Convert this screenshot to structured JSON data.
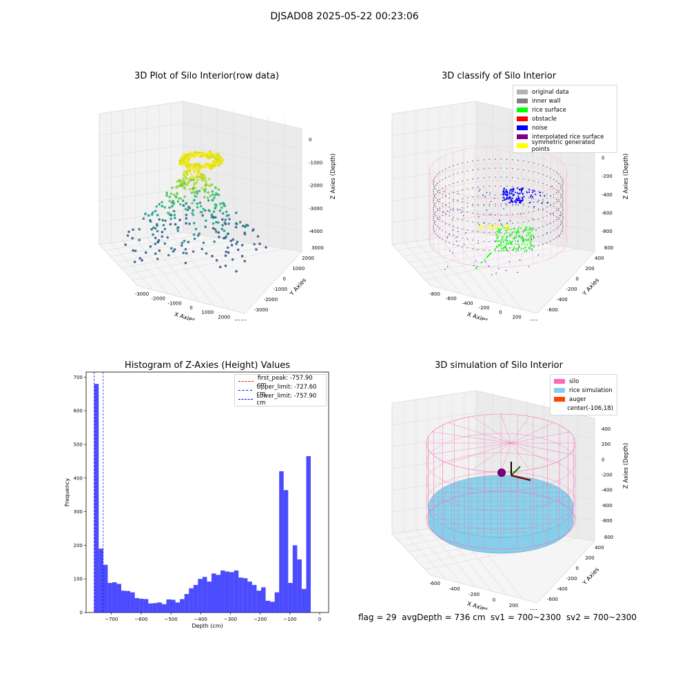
{
  "suptitle": "DJSAD08 2025-05-22 00:23:06",
  "status_text": "flag = 29  avgDepth = 736 cm  sv1 = 700~2300  sv2 = 700~2300",
  "chart_data": [
    {
      "type": "scatter",
      "title": "3D Plot of Silo Interior(row data)",
      "xlabel": "X Axies",
      "ylabel": "Y Axies",
      "zlabel": "Z Axies (Depth)",
      "xticks": [
        "-3000",
        "-2000",
        "-1000",
        "0",
        "1000",
        "2000",
        "3000"
      ],
      "yticks": [
        "-3000",
        "-2000",
        "-1000",
        "0",
        "1000",
        "2000",
        "3000"
      ],
      "zticks": [
        "0",
        "-1000",
        "-2000",
        "-3000",
        "-4000"
      ],
      "xlim": [
        -3500,
        3500
      ],
      "ylim": [
        -3500,
        3500
      ],
      "zlim": [
        -4500,
        0
      ],
      "colormap": "viridis"
    },
    {
      "type": "scatter",
      "title": "3D classify of Silo Interior",
      "xlabel": "X Axies",
      "ylabel": "Y Axies",
      "zlabel": "Z Axies (Depth)",
      "xticks": [
        "-800",
        "-600",
        "-400",
        "-200",
        "0",
        "200",
        "400"
      ],
      "yticks": [
        "-600",
        "-400",
        "-200",
        "0",
        "200",
        "400",
        "600"
      ],
      "zticks": [
        "200",
        "0",
        "-200",
        "-400",
        "-600",
        "-800"
      ],
      "legend": [
        {
          "label": "original data",
          "color": "#b3b3b3"
        },
        {
          "label": "inner wall",
          "color": "#808080"
        },
        {
          "label": "rice surface",
          "color": "#00ff00"
        },
        {
          "label": "obstacle",
          "color": "#ff0000"
        },
        {
          "label": "noise",
          "color": "#0000ff"
        },
        {
          "label": "interpolated rice surface",
          "color": "#800080"
        },
        {
          "label": "symmetric generated points",
          "color": "#ffff00"
        }
      ],
      "legend_position": "upper right"
    },
    {
      "type": "bar",
      "title": "Histogram of Z-Axies (Height) Values",
      "xlabel": "Depth (cm)",
      "ylabel": "Frequency",
      "xlim": [
        -785,
        30
      ],
      "ylim": [
        0,
        715
      ],
      "xticks": [
        -700,
        -600,
        -500,
        -400,
        -300,
        -200,
        -100,
        0
      ],
      "yticks": [
        0,
        100,
        200,
        300,
        400,
        500,
        600,
        700
      ],
      "bin_start": -757.9,
      "bin_width": 15.16,
      "values": [
        680,
        190,
        142,
        88,
        90,
        85,
        65,
        64,
        60,
        43,
        41,
        40,
        27,
        28,
        30,
        25,
        39,
        38,
        30,
        40,
        55,
        72,
        82,
        100,
        106,
        92,
        116,
        112,
        125,
        122,
        120,
        125,
        104,
        102,
        92,
        82,
        65,
        75,
        35,
        32,
        60,
        420,
        364,
        88,
        200,
        158,
        70,
        465
      ],
      "bar_color": "#0000ff",
      "bar_alpha": 0.7,
      "vlines": [
        {
          "label": "first_peak: -757.90 cm",
          "x": -757.9,
          "color": "#ff0000"
        },
        {
          "label": "Upper_limit: -727.60 cm",
          "x": -727.6,
          "color": "#0000ff"
        },
        {
          "label": "Lower_limit: -757.90 cm",
          "x": -757.9,
          "color": "#0000ff"
        }
      ],
      "legend_position": "upper right"
    },
    {
      "type": "scatter",
      "title": "3D simulation of Silo Interior",
      "xlabel": "X Axies",
      "ylabel": "Y Axies",
      "zlabel": "Z Axies (Depth)",
      "xticks": [
        "-600",
        "-400",
        "-200",
        "0",
        "200",
        "400"
      ],
      "yticks": [
        "-600",
        "-400",
        "-200",
        "0",
        "200",
        "400",
        "600"
      ],
      "zticks": [
        "400",
        "200",
        "0",
        "-200",
        "-400",
        "-600",
        "-800"
      ],
      "legend": [
        {
          "label": "silo",
          "color": "#ff69b4"
        },
        {
          "label": "rice simulation",
          "color": "#87ceeb"
        },
        {
          "label": "auger",
          "color": "#ff4500"
        },
        {
          "label": "center(-106,18)",
          "color": "#ffffff"
        }
      ],
      "legend_position": "upper right"
    }
  ]
}
